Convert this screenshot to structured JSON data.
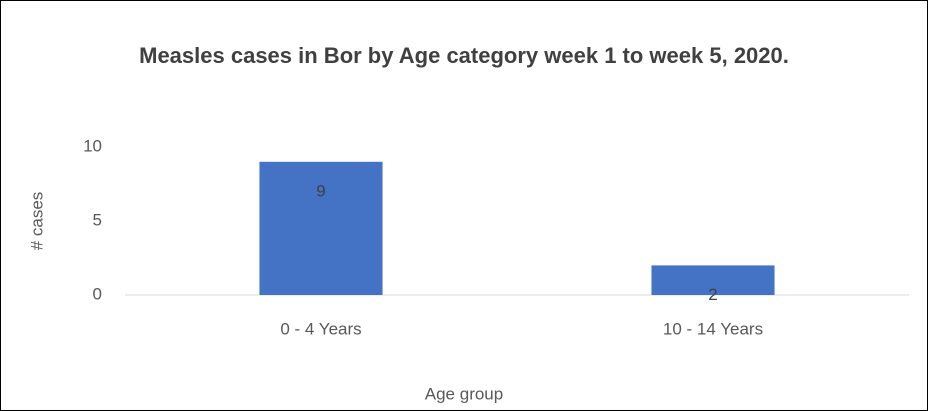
{
  "chart_data": {
    "type": "bar",
    "title": "Measles cases in Bor by Age category week 1 to week 5, 2020.",
    "x_label": "Age group",
    "y_label": "# cases",
    "categories": [
      "0 - 4 Years",
      "10 - 14 Years"
    ],
    "values": [
      9,
      2
    ],
    "color": "#4472c4",
    "ylim": [
      0,
      10
    ],
    "yticks": [
      0,
      5,
      10
    ],
    "grid": false
  }
}
